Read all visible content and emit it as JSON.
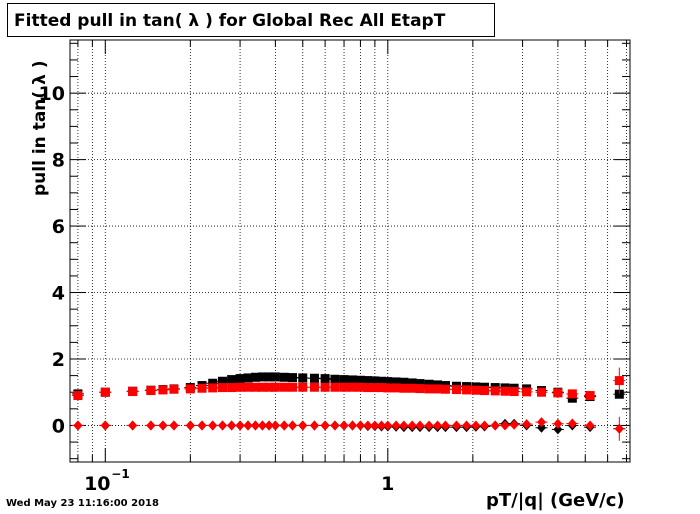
{
  "title": "Fitted pull in tan( λ ) for Global Rec All EtapT",
  "timestamp": "Wed May 23 11:16:00 2018",
  "chart_data": {
    "type": "scatter",
    "title": "Fitted pull in tan( λ ) for Global Rec All EtapT",
    "xlabel": "pT/|q| (GeV/c)",
    "ylabel": "pull in tan( λ )",
    "xscale": "log",
    "xlim": [
      0.075,
      7.2
    ],
    "ylim": [
      -1.1,
      11.6
    ],
    "grid": true,
    "x_tick_labels": [
      {
        "value": 0.1,
        "base": "10",
        "exp": "−1"
      },
      {
        "value": 1,
        "base": "1",
        "exp": ""
      }
    ],
    "y_ticks": [
      0,
      2,
      4,
      6,
      8,
      10
    ],
    "series": [
      {
        "color": "#000000",
        "marker": "square",
        "points": [
          [
            0.08,
            0.95
          ],
          [
            0.1,
            1.0
          ],
          [
            0.125,
            1.03
          ],
          [
            0.145,
            1.06
          ],
          [
            0.16,
            1.08
          ],
          [
            0.175,
            1.1
          ],
          [
            0.2,
            1.14
          ],
          [
            0.22,
            1.2
          ],
          [
            0.24,
            1.27
          ],
          [
            0.26,
            1.33
          ],
          [
            0.28,
            1.38
          ],
          [
            0.3,
            1.41
          ],
          [
            0.32,
            1.43
          ],
          [
            0.34,
            1.45
          ],
          [
            0.36,
            1.46
          ],
          [
            0.38,
            1.46
          ],
          [
            0.4,
            1.46
          ],
          [
            0.43,
            1.45
          ],
          [
            0.46,
            1.44
          ],
          [
            0.5,
            1.43
          ],
          [
            0.55,
            1.42
          ],
          [
            0.6,
            1.41
          ],
          [
            0.65,
            1.39
          ],
          [
            0.7,
            1.38
          ],
          [
            0.75,
            1.37
          ],
          [
            0.8,
            1.36
          ],
          [
            0.85,
            1.35
          ],
          [
            0.9,
            1.34
          ],
          [
            0.95,
            1.33
          ],
          [
            1.0,
            1.32
          ],
          [
            1.07,
            1.31
          ],
          [
            1.14,
            1.3
          ],
          [
            1.22,
            1.28
          ],
          [
            1.3,
            1.26
          ],
          [
            1.4,
            1.24
          ],
          [
            1.5,
            1.22
          ],
          [
            1.6,
            1.2
          ],
          [
            1.75,
            1.18
          ],
          [
            1.9,
            1.17
          ],
          [
            2.05,
            1.16
          ],
          [
            2.2,
            1.15
          ],
          [
            2.4,
            1.14
          ],
          [
            2.6,
            1.13
          ],
          [
            2.8,
            1.12
          ],
          [
            3.1,
            1.1
          ],
          [
            3.5,
            1.05
          ],
          [
            4.0,
            1.0
          ],
          [
            4.5,
            0.82
          ],
          [
            5.2,
            0.87
          ],
          [
            6.6,
            0.94
          ]
        ]
      },
      {
        "color": "#ff0000",
        "marker": "square",
        "points": [
          [
            0.08,
            0.9
          ],
          [
            0.1,
            1.0
          ],
          [
            0.125,
            1.02
          ],
          [
            0.145,
            1.05
          ],
          [
            0.16,
            1.07
          ],
          [
            0.175,
            1.09
          ],
          [
            0.2,
            1.1
          ],
          [
            0.22,
            1.12
          ],
          [
            0.24,
            1.13
          ],
          [
            0.26,
            1.14
          ],
          [
            0.28,
            1.14
          ],
          [
            0.3,
            1.15
          ],
          [
            0.32,
            1.15
          ],
          [
            0.34,
            1.15
          ],
          [
            0.36,
            1.15
          ],
          [
            0.38,
            1.15
          ],
          [
            0.4,
            1.15
          ],
          [
            0.43,
            1.15
          ],
          [
            0.46,
            1.15
          ],
          [
            0.5,
            1.15
          ],
          [
            0.55,
            1.15
          ],
          [
            0.6,
            1.15
          ],
          [
            0.65,
            1.15
          ],
          [
            0.7,
            1.15
          ],
          [
            0.75,
            1.15
          ],
          [
            0.8,
            1.15
          ],
          [
            0.85,
            1.14
          ],
          [
            0.9,
            1.14
          ],
          [
            0.95,
            1.14
          ],
          [
            1.0,
            1.13
          ],
          [
            1.07,
            1.13
          ],
          [
            1.14,
            1.12
          ],
          [
            1.22,
            1.12
          ],
          [
            1.3,
            1.11
          ],
          [
            1.4,
            1.1
          ],
          [
            1.5,
            1.1
          ],
          [
            1.6,
            1.09
          ],
          [
            1.75,
            1.08
          ],
          [
            1.9,
            1.07
          ],
          [
            2.05,
            1.06
          ],
          [
            2.2,
            1.05
          ],
          [
            2.4,
            1.04
          ],
          [
            2.6,
            1.03
          ],
          [
            2.8,
            1.02
          ],
          [
            3.1,
            1.01
          ],
          [
            3.5,
            1.0
          ],
          [
            4.0,
            0.98
          ],
          [
            4.5,
            0.95
          ],
          [
            5.2,
            0.9
          ],
          [
            6.6,
            1.35
          ]
        ]
      },
      {
        "color": "#000000",
        "marker": "diamond",
        "points": [
          [
            0.08,
            0.0
          ],
          [
            0.1,
            0.0
          ],
          [
            0.125,
            0.0
          ],
          [
            0.145,
            0.0
          ],
          [
            0.16,
            0.0
          ],
          [
            0.175,
            0.0
          ],
          [
            0.2,
            0.0
          ],
          [
            0.22,
            0.0
          ],
          [
            0.24,
            0.0
          ],
          [
            0.26,
            0.0
          ],
          [
            0.28,
            0.0
          ],
          [
            0.3,
            0.0
          ],
          [
            0.32,
            0.0
          ],
          [
            0.34,
            0.0
          ],
          [
            0.36,
            0.0
          ],
          [
            0.38,
            0.0
          ],
          [
            0.4,
            0.0
          ],
          [
            0.43,
            0.0
          ],
          [
            0.46,
            0.0
          ],
          [
            0.5,
            0.0
          ],
          [
            0.55,
            0.0
          ],
          [
            0.6,
            0.0
          ],
          [
            0.65,
            0.0
          ],
          [
            0.7,
            0.0
          ],
          [
            0.75,
            0.0
          ],
          [
            0.8,
            0.0
          ],
          [
            0.85,
            -0.02
          ],
          [
            0.9,
            -0.02
          ],
          [
            0.95,
            -0.03
          ],
          [
            1.0,
            -0.03
          ],
          [
            1.07,
            -0.04
          ],
          [
            1.14,
            -0.05
          ],
          [
            1.22,
            -0.05
          ],
          [
            1.3,
            -0.05
          ],
          [
            1.4,
            -0.05
          ],
          [
            1.5,
            -0.05
          ],
          [
            1.6,
            -0.05
          ],
          [
            1.75,
            -0.05
          ],
          [
            1.9,
            -0.05
          ],
          [
            2.05,
            -0.04
          ],
          [
            2.2,
            -0.03
          ],
          [
            2.4,
            0.0
          ],
          [
            2.6,
            0.05
          ],
          [
            2.8,
            0.05
          ],
          [
            3.1,
            0.0
          ],
          [
            3.5,
            -0.07
          ],
          [
            4.0,
            -0.12
          ],
          [
            4.5,
            0.0
          ],
          [
            5.2,
            -0.05
          ],
          [
            6.6,
            -0.1
          ]
        ]
      },
      {
        "color": "#ff0000",
        "marker": "diamond",
        "points": [
          [
            0.08,
            0.0
          ],
          [
            0.1,
            0.0
          ],
          [
            0.125,
            0.0
          ],
          [
            0.145,
            0.0
          ],
          [
            0.16,
            0.0
          ],
          [
            0.175,
            0.0
          ],
          [
            0.2,
            0.0
          ],
          [
            0.22,
            0.0
          ],
          [
            0.24,
            0.0
          ],
          [
            0.26,
            0.0
          ],
          [
            0.28,
            0.0
          ],
          [
            0.3,
            0.0
          ],
          [
            0.32,
            0.0
          ],
          [
            0.34,
            0.0
          ],
          [
            0.36,
            0.0
          ],
          [
            0.38,
            0.0
          ],
          [
            0.4,
            0.0
          ],
          [
            0.43,
            0.0
          ],
          [
            0.46,
            0.0
          ],
          [
            0.5,
            0.0
          ],
          [
            0.55,
            0.0
          ],
          [
            0.6,
            0.0
          ],
          [
            0.65,
            0.0
          ],
          [
            0.7,
            0.0
          ],
          [
            0.75,
            0.0
          ],
          [
            0.8,
            0.0
          ],
          [
            0.85,
            0.0
          ],
          [
            0.9,
            0.0
          ],
          [
            0.95,
            0.0
          ],
          [
            1.0,
            0.0
          ],
          [
            1.07,
            0.0
          ],
          [
            1.14,
            0.0
          ],
          [
            1.22,
            0.0
          ],
          [
            1.3,
            0.0
          ],
          [
            1.4,
            0.0
          ],
          [
            1.5,
            0.0
          ],
          [
            1.6,
            0.0
          ],
          [
            1.75,
            0.0
          ],
          [
            1.9,
            0.0
          ],
          [
            2.05,
            0.0
          ],
          [
            2.2,
            0.0
          ],
          [
            2.4,
            0.0
          ],
          [
            2.6,
            0.0
          ],
          [
            2.8,
            0.02
          ],
          [
            3.1,
            0.04
          ],
          [
            3.5,
            0.1
          ],
          [
            4.0,
            0.05
          ],
          [
            4.5,
            0.06
          ],
          [
            5.2,
            0.0
          ],
          [
            6.6,
            -0.1
          ]
        ]
      }
    ]
  }
}
